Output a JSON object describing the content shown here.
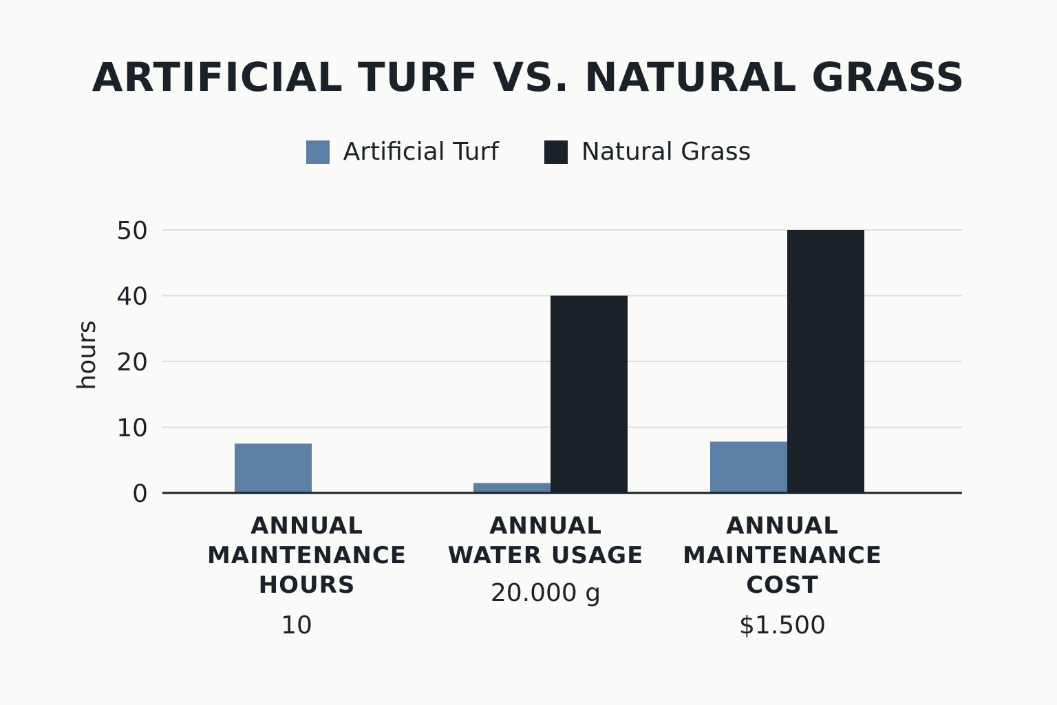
{
  "chart_data": {
    "type": "bar",
    "title": "ARTIFICIAL TURF VS. NATURAL GRASS",
    "ylabel": "hours",
    "xlabel": "",
    "yticks": [
      "0",
      "10",
      "20",
      "40",
      "50"
    ],
    "categories": [
      {
        "lines": [
          "ANNUAL",
          "MAINTENANCE",
          "HOURS"
        ],
        "sublabel": "10"
      },
      {
        "lines": [
          "ANNUAL",
          "WATER USAGE"
        ],
        "sublabel": "20.000 g"
      },
      {
        "lines": [
          "ANNUAL",
          "MAINTENANCE",
          "COST"
        ],
        "sublabel": "$1.500"
      }
    ],
    "series": [
      {
        "name": "Artificial Turf",
        "color": "#5d7fa6",
        "values": [
          7.5,
          1.5,
          7.8
        ]
      },
      {
        "name": "Natural Grass",
        "color": "#1b2128",
        "values": [
          null,
          40,
          50
        ]
      }
    ],
    "grid": true,
    "legend_position": "top-center"
  }
}
